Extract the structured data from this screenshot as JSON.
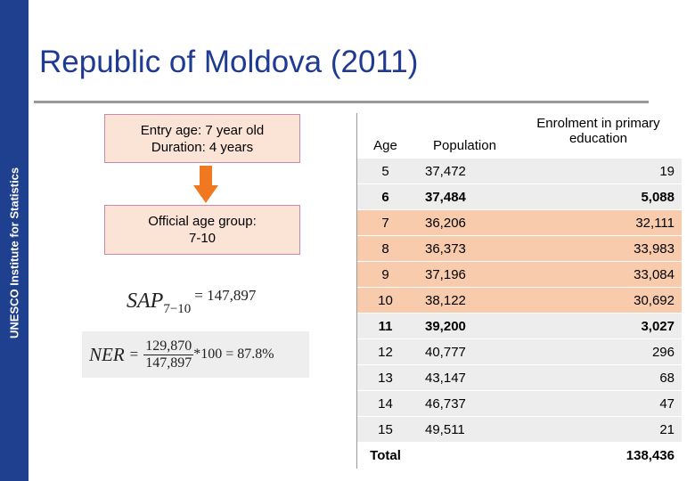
{
  "sidebar": "UNESCO Institute for Statistics",
  "title": "Republic of Moldova (2011)",
  "boxes": [
    {
      "lines": [
        "Entry age: 7 year old",
        "Duration: 4 years"
      ]
    },
    {
      "lines": [
        "Official age group:",
        "7-10"
      ]
    }
  ],
  "formulas": {
    "sap": {
      "symbol": "SAP",
      "subscript": "7−10",
      "value": "= 147,897"
    },
    "ner": {
      "symbol": "NER",
      "equals": "=",
      "numerator": "129,870",
      "denominator": "147,897",
      "rest": "*100 = 87.8%"
    }
  },
  "table": {
    "headers": [
      "Age",
      "Population",
      "Enrolment in primary education"
    ],
    "rows": [
      {
        "cells": [
          "5",
          "37,472",
          "19"
        ],
        "highlight": false,
        "bold": false
      },
      {
        "cells": [
          "6",
          "37,484",
          "5,088"
        ],
        "highlight": false,
        "bold": true
      },
      {
        "cells": [
          "7",
          "36,206",
          "32,111"
        ],
        "highlight": true,
        "bold": false
      },
      {
        "cells": [
          "8",
          "36,373",
          "33,983"
        ],
        "highlight": true,
        "bold": false
      },
      {
        "cells": [
          "9",
          "37,196",
          "33,084"
        ],
        "highlight": true,
        "bold": false
      },
      {
        "cells": [
          "10",
          "38,122",
          "30,692"
        ],
        "highlight": true,
        "bold": false
      },
      {
        "cells": [
          "11",
          "39,200",
          "3,027"
        ],
        "highlight": false,
        "bold": true
      },
      {
        "cells": [
          "12",
          "40,777",
          "296"
        ],
        "highlight": false,
        "bold": false
      },
      {
        "cells": [
          "13",
          "43,147",
          "68"
        ],
        "highlight": false,
        "bold": false
      },
      {
        "cells": [
          "14",
          "46,737",
          "47"
        ],
        "highlight": false,
        "bold": false
      },
      {
        "cells": [
          "15",
          "49,511",
          "21"
        ],
        "highlight": false,
        "bold": false
      }
    ],
    "total": {
      "label": "Total",
      "value": "138,436"
    }
  }
}
